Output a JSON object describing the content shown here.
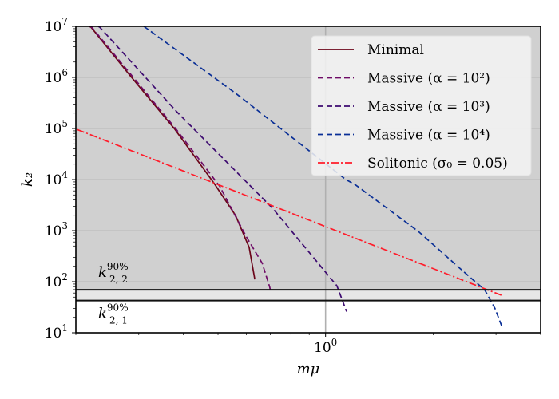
{
  "chart_data": {
    "type": "line",
    "xlabel": "mμ",
    "ylabel": "k₂",
    "xscale": "log",
    "yscale": "log",
    "xlim": [
      0.2,
      4.0
    ],
    "ylim": [
      10,
      10000000
    ],
    "grid": true,
    "legend_position": "top-right",
    "x_tick_labels": [
      {
        "value": 1,
        "base": "10",
        "exp": "0"
      }
    ],
    "y_tick_labels": [
      {
        "value": 10,
        "base": "10",
        "exp": "1"
      },
      {
        "value": 100,
        "base": "10",
        "exp": "2"
      },
      {
        "value": 1000,
        "base": "10",
        "exp": "3"
      },
      {
        "value": 10000,
        "base": "10",
        "exp": "4"
      },
      {
        "value": 100000,
        "base": "10",
        "exp": "5"
      },
      {
        "value": 1000000,
        "base": "10",
        "exp": "6"
      },
      {
        "value": 10000000,
        "base": "10",
        "exp": "7"
      }
    ],
    "thresholds": [
      {
        "value": 69.5,
        "label": {
          "base": "k",
          "sub": "2, 2",
          "sup": "90%"
        }
      },
      {
        "value": 42.8,
        "label": {
          "base": "k",
          "sub": "2, 1",
          "sup": "90%"
        }
      }
    ],
    "region_colors": {
      "above_upper": "#d0d0d0",
      "between": "#e6e6e6",
      "below_lower": "#ffffff"
    },
    "series": [
      {
        "name": "Minimal",
        "color": "#6b0519",
        "style": "solid",
        "points": [
          [
            0.218,
            10000000
          ],
          [
            0.2206,
            9600000
          ],
          [
            0.282,
            1140000
          ],
          [
            0.3774,
            99000
          ],
          [
            0.488,
            8360
          ],
          [
            0.56,
            1980
          ],
          [
            0.611,
            470
          ],
          [
            0.634,
            111
          ]
        ]
      },
      {
        "name": "Massive (α = 10²)",
        "color": "#6e0a66",
        "style": "dashed",
        "points": [
          [
            0.219,
            10000000
          ],
          [
            0.2216,
            9600000
          ],
          [
            0.3808,
            99000
          ],
          [
            0.5055,
            7400
          ],
          [
            0.6,
            760
          ],
          [
            0.665,
            229
          ],
          [
            0.698,
            78
          ],
          [
            0.7,
            70
          ]
        ]
      },
      {
        "name": "Massive (α = 10³)",
        "color": "#3d0a70",
        "style": "dashed",
        "points": [
          [
            0.231,
            10000000
          ],
          [
            0.2333,
            9600000
          ],
          [
            0.384,
            210000
          ],
          [
            0.713,
            2670
          ],
          [
            1.076,
            83
          ],
          [
            1.145,
            26
          ]
        ]
      },
      {
        "name": "Massive (α = 10⁴)",
        "color": "#0a2f96",
        "style": "dashed",
        "points": [
          [
            0.31,
            10000000
          ],
          [
            0.56,
            490000
          ],
          [
            1.14,
            10000
          ],
          [
            1.213,
            7850
          ],
          [
            1.82,
            960
          ],
          [
            2.43,
            159
          ],
          [
            2.79,
            69
          ],
          [
            2.98,
            30
          ],
          [
            3.11,
            13.7
          ]
        ]
      },
      {
        "name": "Solitonic (σ₀ = 0.05)",
        "color": "#ff1c2a",
        "style": "dashdot",
        "points": [
          [
            0.202,
            95000
          ],
          [
            3.11,
            54
          ]
        ]
      }
    ]
  }
}
